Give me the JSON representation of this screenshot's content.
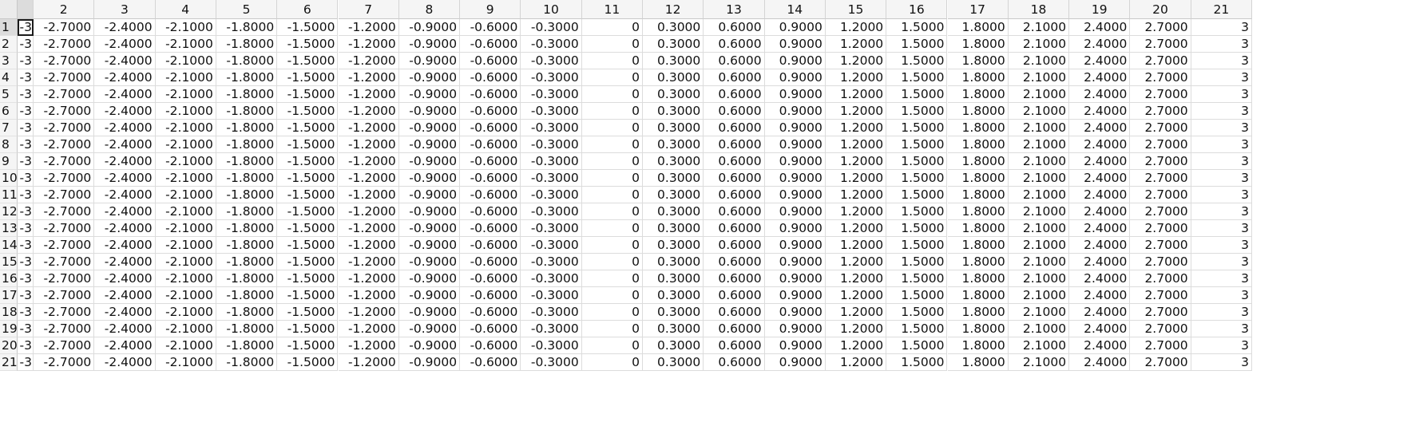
{
  "spreadsheet": {
    "column_headers": [
      "",
      "2",
      "3",
      "4",
      "5",
      "6",
      "7",
      "8",
      "9",
      "10",
      "11",
      "12",
      "13",
      "14",
      "15",
      "16",
      "17",
      "18",
      "19",
      "20",
      "21"
    ],
    "row_headers": [
      "1",
      "2",
      "3",
      "4",
      "5",
      "6",
      "7",
      "8",
      "9",
      "10",
      "11",
      "12",
      "13",
      "14",
      "15",
      "16",
      "17",
      "18",
      "19",
      "20",
      "21"
    ],
    "row_values": [
      "-3",
      "-2.7000",
      "-2.4000",
      "-2.1000",
      "-1.8000",
      "-1.5000",
      "-1.2000",
      "-0.9000",
      "-0.6000",
      "-0.3000",
      "0",
      "0.3000",
      "0.6000",
      "0.9000",
      "1.2000",
      "1.5000",
      "1.8000",
      "2.1000",
      "2.4000",
      "2.7000",
      "3"
    ],
    "rows": [
      [
        "-3",
        "-2.7000",
        "-2.4000",
        "-2.1000",
        "-1.8000",
        "-1.5000",
        "-1.2000",
        "-0.9000",
        "-0.6000",
        "-0.3000",
        "0",
        "0.3000",
        "0.6000",
        "0.9000",
        "1.2000",
        "1.5000",
        "1.8000",
        "2.1000",
        "2.4000",
        "2.7000",
        "3"
      ],
      [
        "-3",
        "-2.7000",
        "-2.4000",
        "-2.1000",
        "-1.8000",
        "-1.5000",
        "-1.2000",
        "-0.9000",
        "-0.6000",
        "-0.3000",
        "0",
        "0.3000",
        "0.6000",
        "0.9000",
        "1.2000",
        "1.5000",
        "1.8000",
        "2.1000",
        "2.4000",
        "2.7000",
        "3"
      ],
      [
        "-3",
        "-2.7000",
        "-2.4000",
        "-2.1000",
        "-1.8000",
        "-1.5000",
        "-1.2000",
        "-0.9000",
        "-0.6000",
        "-0.3000",
        "0",
        "0.3000",
        "0.6000",
        "0.9000",
        "1.2000",
        "1.5000",
        "1.8000",
        "2.1000",
        "2.4000",
        "2.7000",
        "3"
      ],
      [
        "-3",
        "-2.7000",
        "-2.4000",
        "-2.1000",
        "-1.8000",
        "-1.5000",
        "-1.2000",
        "-0.9000",
        "-0.6000",
        "-0.3000",
        "0",
        "0.3000",
        "0.6000",
        "0.9000",
        "1.2000",
        "1.5000",
        "1.8000",
        "2.1000",
        "2.4000",
        "2.7000",
        "3"
      ],
      [
        "-3",
        "-2.7000",
        "-2.4000",
        "-2.1000",
        "-1.8000",
        "-1.5000",
        "-1.2000",
        "-0.9000",
        "-0.6000",
        "-0.3000",
        "0",
        "0.3000",
        "0.6000",
        "0.9000",
        "1.2000",
        "1.5000",
        "1.8000",
        "2.1000",
        "2.4000",
        "2.7000",
        "3"
      ],
      [
        "-3",
        "-2.7000",
        "-2.4000",
        "-2.1000",
        "-1.8000",
        "-1.5000",
        "-1.2000",
        "-0.9000",
        "-0.6000",
        "-0.3000",
        "0",
        "0.3000",
        "0.6000",
        "0.9000",
        "1.2000",
        "1.5000",
        "1.8000",
        "2.1000",
        "2.4000",
        "2.7000",
        "3"
      ],
      [
        "-3",
        "-2.7000",
        "-2.4000",
        "-2.1000",
        "-1.8000",
        "-1.5000",
        "-1.2000",
        "-0.9000",
        "-0.6000",
        "-0.3000",
        "0",
        "0.3000",
        "0.6000",
        "0.9000",
        "1.2000",
        "1.5000",
        "1.8000",
        "2.1000",
        "2.4000",
        "2.7000",
        "3"
      ],
      [
        "-3",
        "-2.7000",
        "-2.4000",
        "-2.1000",
        "-1.8000",
        "-1.5000",
        "-1.2000",
        "-0.9000",
        "-0.6000",
        "-0.3000",
        "0",
        "0.3000",
        "0.6000",
        "0.9000",
        "1.2000",
        "1.5000",
        "1.8000",
        "2.1000",
        "2.4000",
        "2.7000",
        "3"
      ],
      [
        "-3",
        "-2.7000",
        "-2.4000",
        "-2.1000",
        "-1.8000",
        "-1.5000",
        "-1.2000",
        "-0.9000",
        "-0.6000",
        "-0.3000",
        "0",
        "0.3000",
        "0.6000",
        "0.9000",
        "1.2000",
        "1.5000",
        "1.8000",
        "2.1000",
        "2.4000",
        "2.7000",
        "3"
      ],
      [
        "-3",
        "-2.7000",
        "-2.4000",
        "-2.1000",
        "-1.8000",
        "-1.5000",
        "-1.2000",
        "-0.9000",
        "-0.6000",
        "-0.3000",
        "0",
        "0.3000",
        "0.6000",
        "0.9000",
        "1.2000",
        "1.5000",
        "1.8000",
        "2.1000",
        "2.4000",
        "2.7000",
        "3"
      ],
      [
        "-3",
        "-2.7000",
        "-2.4000",
        "-2.1000",
        "-1.8000",
        "-1.5000",
        "-1.2000",
        "-0.9000",
        "-0.6000",
        "-0.3000",
        "0",
        "0.3000",
        "0.6000",
        "0.9000",
        "1.2000",
        "1.5000",
        "1.8000",
        "2.1000",
        "2.4000",
        "2.7000",
        "3"
      ],
      [
        "-3",
        "-2.7000",
        "-2.4000",
        "-2.1000",
        "-1.8000",
        "-1.5000",
        "-1.2000",
        "-0.9000",
        "-0.6000",
        "-0.3000",
        "0",
        "0.3000",
        "0.6000",
        "0.9000",
        "1.2000",
        "1.5000",
        "1.8000",
        "2.1000",
        "2.4000",
        "2.7000",
        "3"
      ],
      [
        "-3",
        "-2.7000",
        "-2.4000",
        "-2.1000",
        "-1.8000",
        "-1.5000",
        "-1.2000",
        "-0.9000",
        "-0.6000",
        "-0.3000",
        "0",
        "0.3000",
        "0.6000",
        "0.9000",
        "1.2000",
        "1.5000",
        "1.8000",
        "2.1000",
        "2.4000",
        "2.7000",
        "3"
      ],
      [
        "-3",
        "-2.7000",
        "-2.4000",
        "-2.1000",
        "-1.8000",
        "-1.5000",
        "-1.2000",
        "-0.9000",
        "-0.6000",
        "-0.3000",
        "0",
        "0.3000",
        "0.6000",
        "0.9000",
        "1.2000",
        "1.5000",
        "1.8000",
        "2.1000",
        "2.4000",
        "2.7000",
        "3"
      ],
      [
        "-3",
        "-2.7000",
        "-2.4000",
        "-2.1000",
        "-1.8000",
        "-1.5000",
        "-1.2000",
        "-0.9000",
        "-0.6000",
        "-0.3000",
        "0",
        "0.3000",
        "0.6000",
        "0.9000",
        "1.2000",
        "1.5000",
        "1.8000",
        "2.1000",
        "2.4000",
        "2.7000",
        "3"
      ],
      [
        "-3",
        "-2.7000",
        "-2.4000",
        "-2.1000",
        "-1.8000",
        "-1.5000",
        "-1.2000",
        "-0.9000",
        "-0.6000",
        "-0.3000",
        "0",
        "0.3000",
        "0.6000",
        "0.9000",
        "1.2000",
        "1.5000",
        "1.8000",
        "2.1000",
        "2.4000",
        "2.7000",
        "3"
      ],
      [
        "-3",
        "-2.7000",
        "-2.4000",
        "-2.1000",
        "-1.8000",
        "-1.5000",
        "-1.2000",
        "-0.9000",
        "-0.6000",
        "-0.3000",
        "0",
        "0.3000",
        "0.6000",
        "0.9000",
        "1.2000",
        "1.5000",
        "1.8000",
        "2.1000",
        "2.4000",
        "2.7000",
        "3"
      ],
      [
        "-3",
        "-2.7000",
        "-2.4000",
        "-2.1000",
        "-1.8000",
        "-1.5000",
        "-1.2000",
        "-0.9000",
        "-0.6000",
        "-0.3000",
        "0",
        "0.3000",
        "0.6000",
        "0.9000",
        "1.2000",
        "1.5000",
        "1.8000",
        "2.1000",
        "2.4000",
        "2.7000",
        "3"
      ],
      [
        "-3",
        "-2.7000",
        "-2.4000",
        "-2.1000",
        "-1.8000",
        "-1.5000",
        "-1.2000",
        "-0.9000",
        "-0.6000",
        "-0.3000",
        "0",
        "0.3000",
        "0.6000",
        "0.9000",
        "1.2000",
        "1.5000",
        "1.8000",
        "2.1000",
        "2.4000",
        "2.7000",
        "3"
      ],
      [
        "-3",
        "-2.7000",
        "-2.4000",
        "-2.1000",
        "-1.8000",
        "-1.5000",
        "-1.2000",
        "-0.9000",
        "-0.6000",
        "-0.3000",
        "0",
        "0.3000",
        "0.6000",
        "0.9000",
        "1.2000",
        "1.5000",
        "1.8000",
        "2.1000",
        "2.4000",
        "2.7000",
        "3"
      ],
      [
        "-3",
        "-2.7000",
        "-2.4000",
        "-2.1000",
        "-1.8000",
        "-1.5000",
        "-1.2000",
        "-0.9000",
        "-0.6000",
        "-0.3000",
        "0",
        "0.3000",
        "0.6000",
        "0.9000",
        "1.2000",
        "1.5000",
        "1.8000",
        "2.1000",
        "2.4000",
        "2.7000",
        "3"
      ]
    ],
    "selected_cell": {
      "row": 1,
      "col": 1
    }
  }
}
